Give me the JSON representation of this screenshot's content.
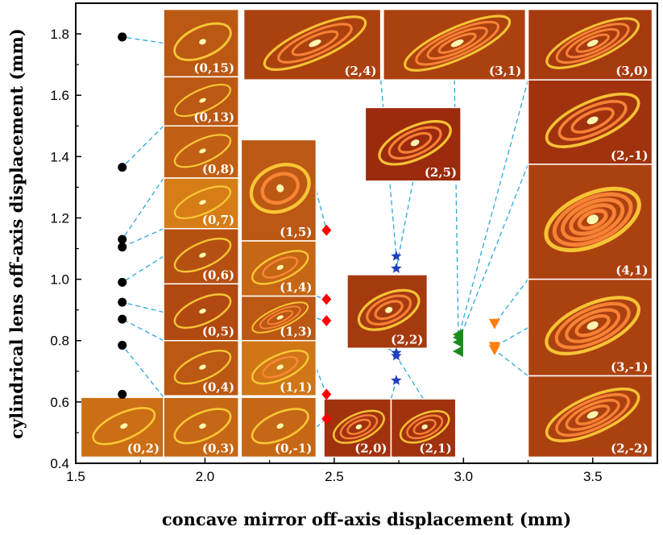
{
  "chart_data": {
    "type": "scatter",
    "xlabel": "concave mirror off-axis displacement (mm)",
    "ylabel": "cylindrical lens off-axis displacement (mm)",
    "xlim": [
      1.5,
      3.75
    ],
    "ylim": [
      0.4,
      1.9
    ],
    "xticks": [
      "1.5",
      "2.0",
      "2.5",
      "3.0",
      "3.5"
    ],
    "yticks": [
      "0.4",
      "0.6",
      "0.8",
      "1.0",
      "1.2",
      "1.4",
      "1.6",
      "1.8"
    ],
    "grid": false,
    "colors": {
      "circle": "#000000",
      "diamond": "#ff0000",
      "star": "#1f3fbf",
      "triangle-left": "#1a8a1a",
      "triangle-down": "#ff7f0e",
      "connector": "#2aa8d8"
    },
    "series": [
      {
        "marker": "circle",
        "x": [
          1.68,
          1.68,
          1.68,
          1.68,
          1.68,
          1.68,
          1.68,
          1.68,
          1.68,
          1.68
        ],
        "y": [
          1.79,
          1.365,
          1.13,
          1.105,
          0.99,
          0.925,
          0.87,
          0.785,
          0.625,
          1.79
        ]
      },
      {
        "marker": "diamond",
        "x": [
          2.47,
          2.47,
          2.47,
          2.47,
          2.47
        ],
        "y": [
          1.16,
          0.935,
          0.865,
          0.625,
          0.545
        ]
      },
      {
        "marker": "star",
        "x": [
          2.74,
          2.74,
          2.74,
          2.74,
          2.74
        ],
        "y": [
          1.075,
          1.035,
          0.76,
          0.75,
          0.67
        ]
      },
      {
        "marker": "triangle-left",
        "x": [
          2.98,
          2.98,
          2.98,
          2.98
        ],
        "y": [
          0.82,
          0.81,
          0.795,
          0.765
        ]
      },
      {
        "marker": "triangle-down",
        "x": [
          3.12,
          3.12,
          3.12
        ],
        "y": [
          0.855,
          0.78,
          0.77
        ]
      }
    ],
    "mode_images": [
      {
        "label": "(0,15)",
        "x0": 1.84,
        "x1": 2.13,
        "y0": 1.66,
        "y1": 1.88,
        "k": 0.45,
        "rings": 1,
        "px": 1.68,
        "py": 1.79
      },
      {
        "label": "(0,13)",
        "x0": 1.84,
        "x1": 2.13,
        "y0": 1.5,
        "y1": 1.66,
        "k": 0.45,
        "rings": 1,
        "px": 1.68,
        "py": 1.365
      },
      {
        "label": "(0,8)",
        "x0": 1.84,
        "x1": 2.13,
        "y0": 1.33,
        "y1": 1.5,
        "k": 0.5,
        "rings": 1,
        "px": 1.68,
        "py": 1.13
      },
      {
        "label": "(0,7)",
        "x0": 1.84,
        "x1": 2.13,
        "y0": 1.165,
        "y1": 1.33,
        "k": 0.7,
        "rings": 1,
        "px": 1.68,
        "py": 1.105
      },
      {
        "label": "(0,6)",
        "x0": 1.84,
        "x1": 2.13,
        "y0": 0.985,
        "y1": 1.165,
        "k": 0.4,
        "rings": 1,
        "px": 1.68,
        "py": 0.99
      },
      {
        "label": "(0,5)",
        "x0": 1.84,
        "x1": 2.13,
        "y0": 0.8,
        "y1": 0.985,
        "k": 0.35,
        "rings": 1,
        "px": 1.68,
        "py": 0.925
      },
      {
        "label": "(0,4)",
        "x0": 1.84,
        "x1": 2.13,
        "y0": 0.62,
        "y1": 0.8,
        "k": 0.45,
        "rings": 1,
        "px": 1.68,
        "py": 0.87
      },
      {
        "label": "(0,3)",
        "x0": 1.84,
        "x1": 2.13,
        "y0": 0.42,
        "y1": 0.615,
        "k": 0.55,
        "rings": 1,
        "px": 1.68,
        "py": 0.785
      },
      {
        "label": "(0,2)",
        "x0": 1.52,
        "x1": 1.84,
        "y0": 0.42,
        "y1": 0.615,
        "k": 0.6,
        "rings": 1,
        "px": 1.68,
        "py": 0.625
      },
      {
        "label": "(1,5)",
        "x0": 2.14,
        "x1": 2.43,
        "y0": 1.125,
        "y1": 1.455,
        "k": 0.45,
        "rings": 2,
        "px": 2.47,
        "py": 1.16
      },
      {
        "label": "(1,4)",
        "x0": 2.14,
        "x1": 2.43,
        "y0": 0.945,
        "y1": 1.125,
        "k": 0.55,
        "rings": 2,
        "px": 2.47,
        "py": 0.935
      },
      {
        "label": "(1,3)",
        "x0": 2.14,
        "x1": 2.43,
        "y0": 0.8,
        "y1": 0.945,
        "k": 0.45,
        "rings": 3,
        "px": 2.47,
        "py": 0.865
      },
      {
        "label": "(1,1)",
        "x0": 2.14,
        "x1": 2.43,
        "y0": 0.62,
        "y1": 0.8,
        "k": 0.65,
        "rings": 2,
        "px": 2.47,
        "py": 0.625
      },
      {
        "label": "(0,-1)",
        "x0": 2.14,
        "x1": 2.43,
        "y0": 0.42,
        "y1": 0.615,
        "k": 0.55,
        "rings": 1,
        "px": 2.47,
        "py": 0.545
      },
      {
        "label": "(2,4)",
        "x0": 2.15,
        "x1": 2.68,
        "y0": 1.65,
        "y1": 1.88,
        "k": 0.3,
        "rings": 3,
        "px": 2.74,
        "py": 1.075
      },
      {
        "label": "(3,1)",
        "x0": 2.69,
        "x1": 3.24,
        "y0": 1.65,
        "y1": 1.88,
        "k": 0.3,
        "rings": 4,
        "px": 2.98,
        "py": 0.82
      },
      {
        "label": "(3,0)",
        "x0": 3.25,
        "x1": 3.73,
        "y0": 1.65,
        "y1": 1.88,
        "k": 0.25,
        "rings": 4,
        "px": 2.98,
        "py": 0.81
      },
      {
        "label": "(2,5)",
        "x0": 2.62,
        "x1": 2.99,
        "y0": 1.32,
        "y1": 1.56,
        "k": 0.15,
        "rings": 3,
        "px": 2.74,
        "py": 1.035
      },
      {
        "label": "(2,-1)",
        "x0": 3.25,
        "x1": 3.73,
        "y0": 1.375,
        "y1": 1.65,
        "k": 0.2,
        "rings": 3,
        "px": 2.98,
        "py": 0.795
      },
      {
        "label": "(4,1)",
        "x0": 3.25,
        "x1": 3.73,
        "y0": 1.0,
        "y1": 1.375,
        "k": 0.3,
        "rings": 5,
        "px": 3.12,
        "py": 0.855
      },
      {
        "label": "(2,2)",
        "x0": 2.55,
        "x1": 2.86,
        "y0": 0.775,
        "y1": 1.015,
        "k": 0.25,
        "rings": 3,
        "px": 2.74,
        "py": 0.76
      },
      {
        "label": "(3,-1)",
        "x0": 3.25,
        "x1": 3.73,
        "y0": 0.685,
        "y1": 1.0,
        "k": 0.3,
        "rings": 4,
        "px": 3.12,
        "py": 0.78
      },
      {
        "label": "(2,-2)",
        "x0": 3.25,
        "x1": 3.73,
        "y0": 0.42,
        "y1": 0.685,
        "k": 0.3,
        "rings": 4,
        "px": 3.12,
        "py": 0.77
      },
      {
        "label": "(2,0)",
        "x0": 2.46,
        "x1": 2.72,
        "y0": 0.42,
        "y1": 0.61,
        "k": 0.2,
        "rings": 3,
        "px": 2.74,
        "py": 0.67
      },
      {
        "label": "(2,1)",
        "x0": 2.72,
        "x1": 2.97,
        "y0": 0.42,
        "y1": 0.61,
        "k": 0.2,
        "rings": 3,
        "px": 2.74,
        "py": 0.75
      }
    ]
  }
}
